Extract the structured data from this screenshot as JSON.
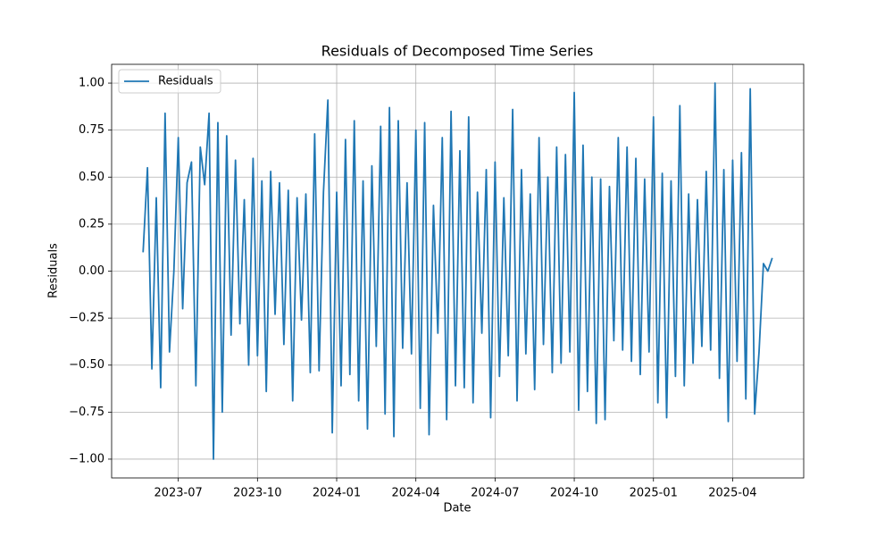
{
  "chart_data": {
    "type": "line",
    "title": "Residuals of Decomposed Time Series",
    "x_label": "Date",
    "y_label": "Residuals",
    "categories": [
      null,
      null,
      null,
      null,
      null,
      null,
      null,
      null,
      "2023-07",
      null,
      null,
      null,
      null,
      null,
      null,
      null,
      null,
      null,
      null,
      null,
      null,
      null,
      null,
      null,
      null,
      null,
      "2023-10",
      null,
      null,
      null,
      null,
      null,
      null,
      null,
      null,
      null,
      null,
      null,
      null,
      null,
      null,
      null,
      null,
      null,
      "2024-01",
      null,
      null,
      null,
      null,
      null,
      null,
      null,
      null,
      null,
      null,
      null,
      null,
      null,
      null,
      null,
      null,
      null,
      "2024-04",
      null,
      null,
      null,
      null,
      null,
      null,
      null,
      null,
      null,
      null,
      null,
      null,
      null,
      null,
      null,
      null,
      null,
      "2024-07",
      null,
      null,
      null,
      null,
      null,
      null,
      null,
      null,
      null,
      null,
      null,
      null,
      null,
      null,
      null,
      null,
      null,
      "2024-10",
      null,
      null,
      null,
      null,
      null,
      null,
      null,
      null,
      null,
      null,
      null,
      null,
      null,
      null,
      null,
      null,
      null,
      "2025-01",
      null,
      null,
      null,
      null,
      null,
      null,
      null,
      null,
      null,
      null,
      null,
      null,
      null,
      null,
      null,
      null,
      null,
      "2025-04",
      null,
      null,
      null,
      null,
      null,
      null,
      null,
      null,
      null
    ],
    "series": [
      {
        "name": "Residuals",
        "color": "#1f77b4",
        "values": [
          0.1,
          0.55,
          -0.52,
          0.39,
          -0.62,
          0.84,
          -0.43,
          0.0,
          0.71,
          -0.2,
          0.47,
          0.58,
          -0.61,
          0.66,
          0.46,
          0.84,
          -1.0,
          0.79,
          -0.75,
          0.72,
          -0.34,
          0.59,
          -0.28,
          0.38,
          -0.5,
          0.6,
          -0.45,
          0.48,
          -0.64,
          0.53,
          -0.23,
          0.47,
          -0.39,
          0.43,
          -0.69,
          0.39,
          -0.26,
          0.41,
          -0.54,
          0.73,
          -0.53,
          0.42,
          0.91,
          -0.86,
          0.42,
          -0.61,
          0.7,
          -0.55,
          0.8,
          -0.69,
          0.48,
          -0.84,
          0.56,
          -0.4,
          0.77,
          -0.76,
          0.87,
          -0.88,
          0.8,
          -0.41,
          0.47,
          -0.44,
          0.75,
          -0.73,
          0.79,
          -0.87,
          0.35,
          -0.33,
          0.71,
          -0.79,
          0.85,
          -0.61,
          0.64,
          -0.62,
          0.82,
          -0.7,
          0.42,
          -0.33,
          0.54,
          -0.78,
          0.58,
          -0.56,
          0.39,
          -0.45,
          0.86,
          -0.69,
          0.54,
          -0.44,
          0.41,
          -0.63,
          0.71,
          -0.39,
          0.5,
          -0.54,
          0.66,
          -0.49,
          0.62,
          -0.43,
          0.95,
          -0.74,
          0.67,
          -0.64,
          0.5,
          -0.81,
          0.49,
          -0.79,
          0.45,
          -0.37,
          0.71,
          -0.42,
          0.66,
          -0.48,
          0.6,
          -0.55,
          0.49,
          -0.43,
          0.82,
          -0.7,
          0.52,
          -0.78,
          0.48,
          -0.56,
          0.88,
          -0.61,
          0.41,
          -0.49,
          0.38,
          -0.4,
          0.53,
          -0.42,
          1.0,
          -0.57,
          0.54,
          -0.8,
          0.59,
          -0.48,
          0.63,
          -0.68,
          0.97,
          -0.76,
          -0.43,
          0.04,
          0.0,
          0.07
        ]
      }
    ],
    "ylim": [
      -1.1,
      1.1
    ],
    "yticks": [
      {
        "value": -1,
        "label": "−1.00"
      },
      {
        "value": -0.75,
        "label": "−0.75"
      },
      {
        "value": -0.5,
        "label": "−0.50"
      },
      {
        "value": -0.25,
        "label": "−0.25"
      },
      {
        "value": 0,
        "label": "0.00"
      },
      {
        "value": 0.25,
        "label": "0.25"
      },
      {
        "value": 0.5,
        "label": "0.50"
      },
      {
        "value": 0.75,
        "label": "0.75"
      },
      {
        "value": 1,
        "label": "1.00"
      }
    ],
    "grid": true,
    "legend": "upper left"
  }
}
